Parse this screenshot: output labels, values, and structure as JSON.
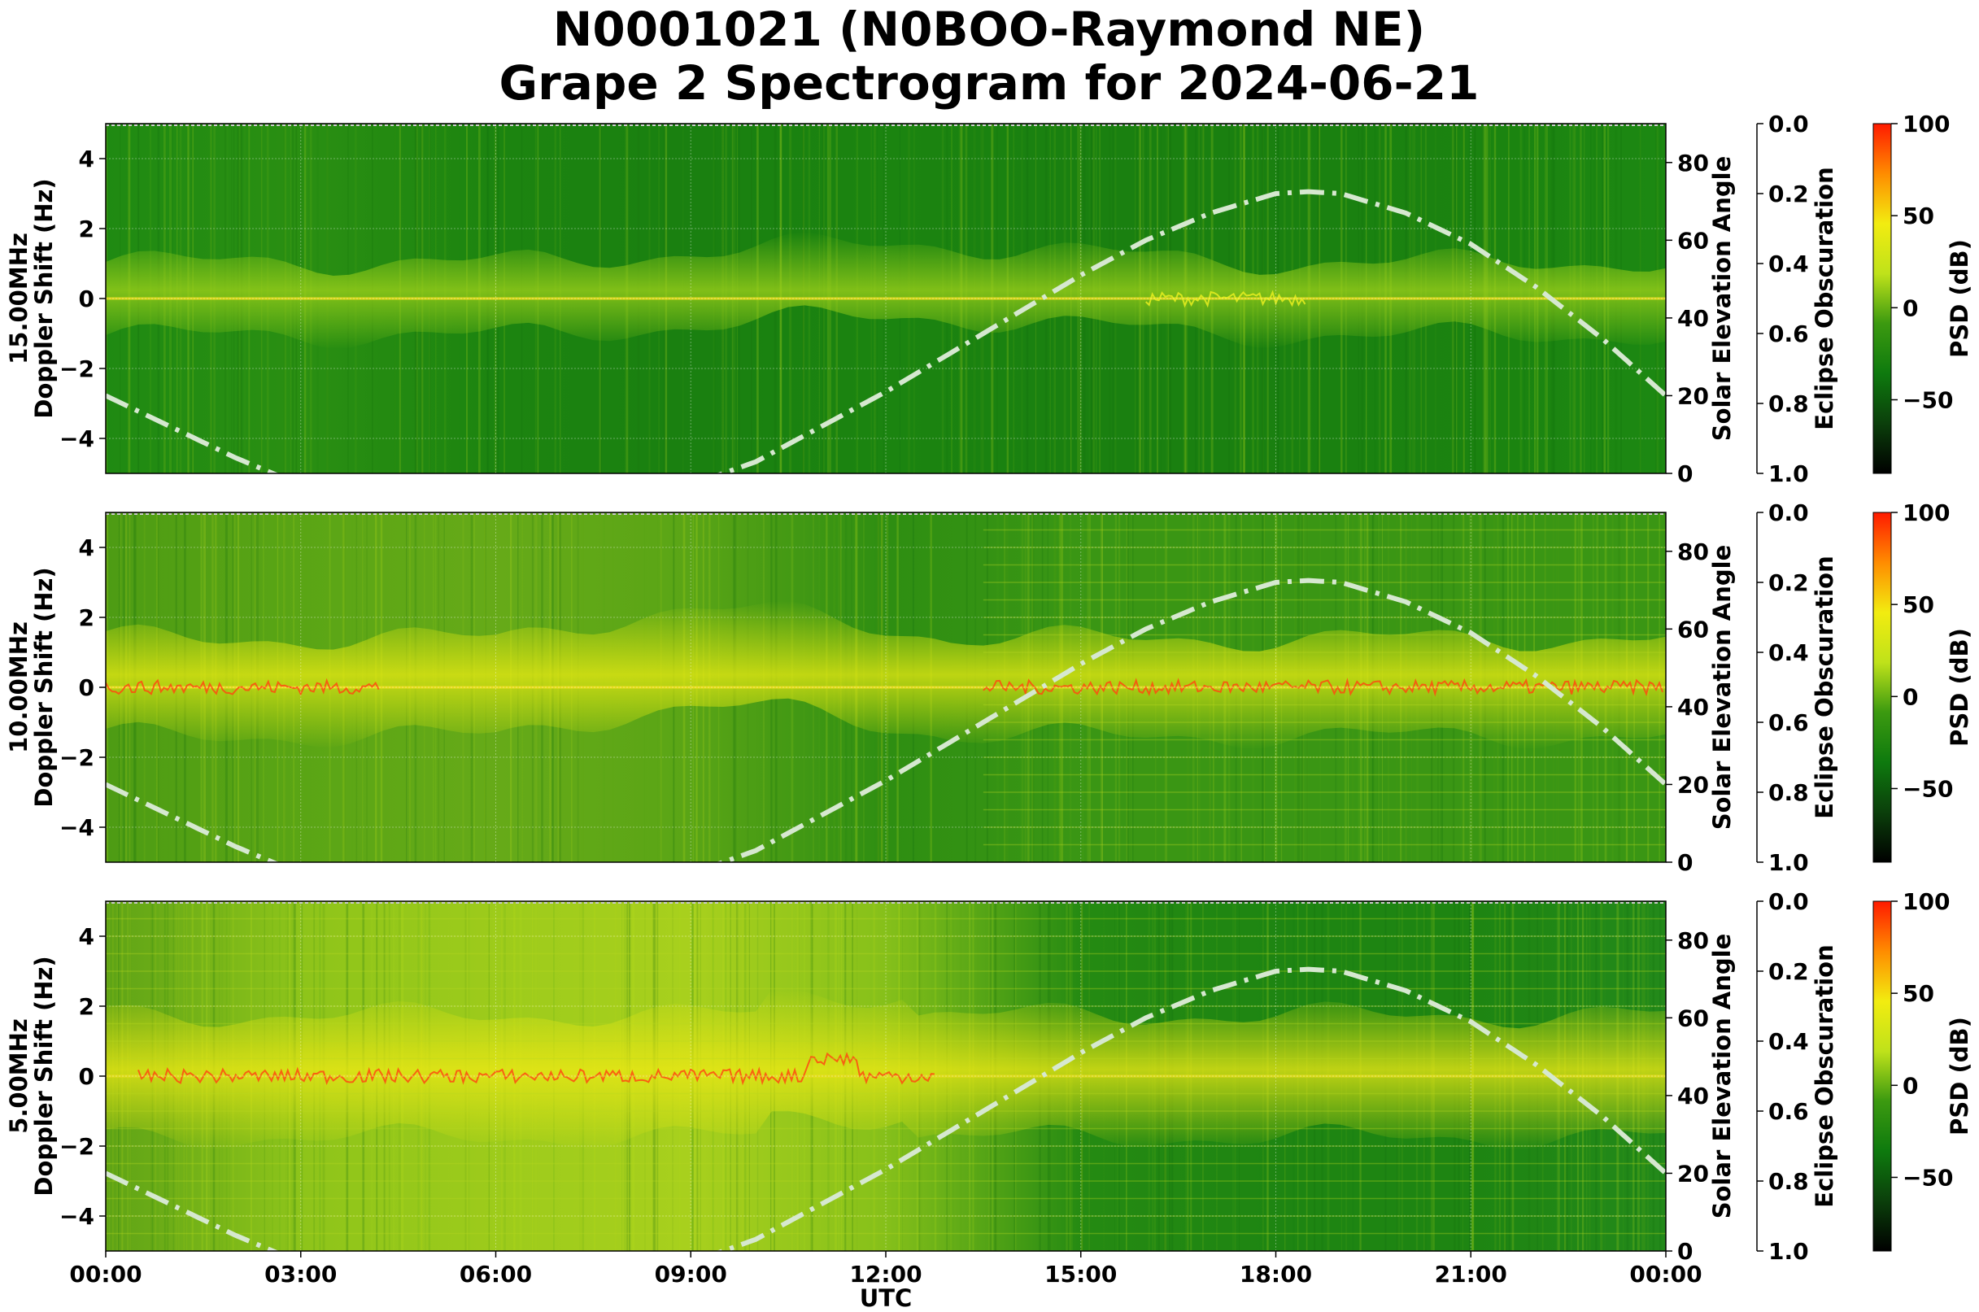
{
  "title_line1": "N0001021 (N0BOO-Raymond NE)",
  "title_line2": "Grape 2 Spectrogram for 2024-06-21",
  "colors": {
    "sun_curve": "#d6e8d0",
    "psd_colormap": [
      "#000000",
      "#0b3f0b",
      "#0e7a0e",
      "#3c9a10",
      "#bfe21a",
      "#f2ec10",
      "#ff8c00",
      "#ff1a00"
    ]
  },
  "chart_data": [
    {
      "type": "heatmap",
      "frequency_label": "15.00MHz",
      "ylabel": "Doppler Shift (Hz)",
      "xlabel": "",
      "ylim": [
        -5,
        5
      ],
      "y_ticks": [
        "4",
        "2",
        "0",
        "−2",
        "−4"
      ],
      "right_ylabel": "Solar Elevation Angle",
      "right_ylim": [
        0,
        90
      ],
      "right_ticks": [
        "80",
        "60",
        "40",
        "20",
        "0"
      ],
      "eclipse_label": "Eclipse Obscuration",
      "eclipse_ticks": [
        "0.0",
        "0.2",
        "0.4",
        "0.6",
        "0.8",
        "1.0"
      ],
      "colorbar_label": "PSD (dB)",
      "colorbar_ticks": [
        "100",
        "50",
        "0",
        "−50"
      ],
      "colorbar_range": [
        -90,
        100
      ],
      "grid": true
    },
    {
      "type": "heatmap",
      "frequency_label": "10.00MHz",
      "ylabel": "Doppler Shift (Hz)",
      "xlabel": "",
      "ylim": [
        -5,
        5
      ],
      "y_ticks": [
        "4",
        "2",
        "0",
        "−2",
        "−4"
      ],
      "right_ylabel": "Solar Elevation Angle",
      "right_ylim": [
        0,
        90
      ],
      "right_ticks": [
        "80",
        "60",
        "40",
        "20",
        "0"
      ],
      "eclipse_label": "Eclipse Obscuration",
      "eclipse_ticks": [
        "0.0",
        "0.2",
        "0.4",
        "0.6",
        "0.8",
        "1.0"
      ],
      "colorbar_label": "PSD (dB)",
      "colorbar_ticks": [
        "100",
        "50",
        "0",
        "−50"
      ],
      "colorbar_range": [
        -90,
        100
      ],
      "grid": true
    },
    {
      "type": "heatmap",
      "frequency_label": "5.00MHz",
      "ylabel": "Doppler Shift (Hz)",
      "xlabel": "UTC",
      "x_ticks": [
        "00:00",
        "03:00",
        "06:00",
        "09:00",
        "12:00",
        "15:00",
        "18:00",
        "21:00",
        "00:00"
      ],
      "ylim": [
        -5,
        5
      ],
      "y_ticks": [
        "4",
        "2",
        "0",
        "−2",
        "−4"
      ],
      "right_ylabel": "Solar Elevation Angle",
      "right_ylim": [
        0,
        90
      ],
      "right_ticks": [
        "80",
        "60",
        "40",
        "20",
        "0"
      ],
      "eclipse_label": "Eclipse Obscuration",
      "eclipse_ticks": [
        "0.0",
        "0.2",
        "0.4",
        "0.6",
        "0.8",
        "1.0"
      ],
      "colorbar_label": "PSD (dB)",
      "colorbar_ticks": [
        "100",
        "50",
        "0",
        "−50"
      ],
      "colorbar_range": [
        -90,
        100
      ],
      "grid": true
    }
  ],
  "solar_elevation": {
    "hours": [
      0,
      1,
      2,
      3,
      4,
      5,
      6,
      7,
      8,
      9,
      10,
      11,
      12,
      13,
      14,
      15,
      16,
      17,
      18,
      18.5,
      19,
      20,
      21,
      22,
      23,
      24
    ],
    "degrees": [
      20,
      12,
      4,
      -3,
      -9,
      -13,
      -15,
      -13,
      -9,
      -3,
      3,
      12,
      21,
      31,
      41,
      51,
      60,
      67,
      72,
      72.5,
      72,
      67,
      59,
      48,
      35,
      20
    ]
  }
}
